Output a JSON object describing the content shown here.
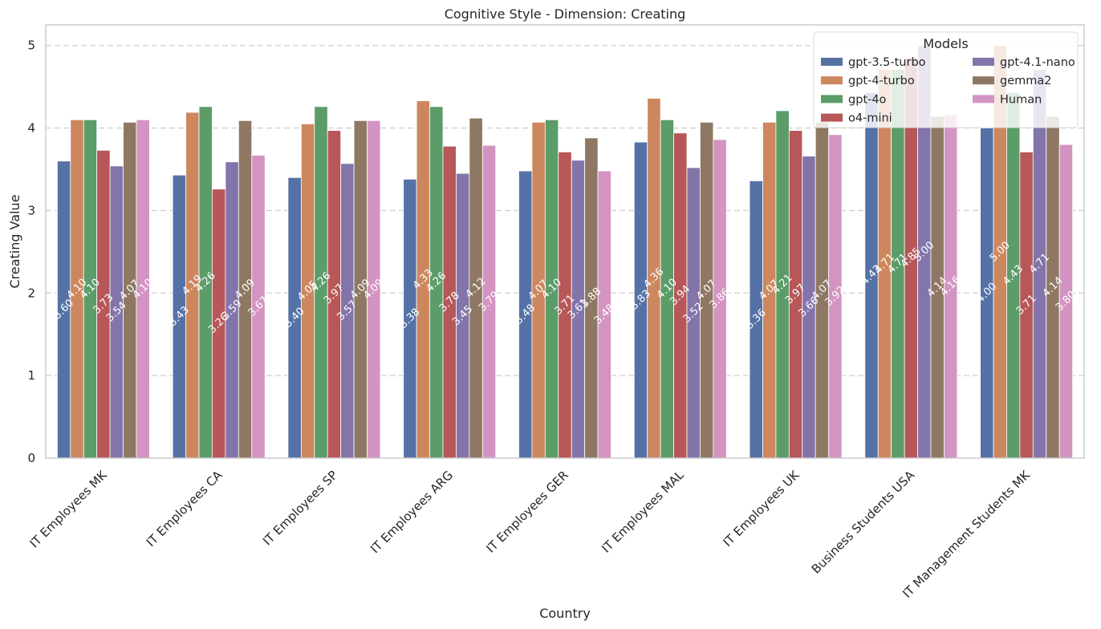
{
  "chart_data": {
    "type": "bar",
    "title": "Cognitive Style - Dimension: Creating",
    "xlabel": "Country",
    "ylabel": "Creating Value",
    "ylim": [
      0,
      5.25
    ],
    "yticks": [
      0,
      1,
      2,
      3,
      4,
      5
    ],
    "grid": "horizontal dashed",
    "legend": {
      "title": "Models",
      "placement": "top-right",
      "columns": 2
    },
    "categories": [
      "IT Employees MK",
      "IT Employees CA",
      "IT Employees SP",
      "IT Employees ARG",
      "IT Employees GER",
      "IT Employees MAL",
      "IT Employees UK",
      "Business Students USA",
      "IT Management Students MK"
    ],
    "series": [
      {
        "name": "gpt-3.5-turbo",
        "color": "#5572a6",
        "values": [
          3.6,
          3.43,
          3.4,
          3.38,
          3.48,
          3.83,
          3.36,
          4.43,
          4.0
        ]
      },
      {
        "name": "gpt-4-turbo",
        "color": "#cd875e",
        "values": [
          4.1,
          4.19,
          4.05,
          4.33,
          4.07,
          4.36,
          4.07,
          4.71,
          5.0
        ]
      },
      {
        "name": "gpt-4o",
        "color": "#5c9c69",
        "values": [
          4.1,
          4.26,
          4.26,
          4.26,
          4.1,
          4.1,
          4.21,
          4.71,
          4.43
        ]
      },
      {
        "name": "o4-mini",
        "color": "#b75758",
        "values": [
          3.73,
          3.26,
          3.97,
          3.78,
          3.71,
          3.94,
          3.97,
          4.85,
          3.71
        ]
      },
      {
        "name": "gpt-4.1-nano",
        "color": "#8375aa",
        "values": [
          3.54,
          3.59,
          3.57,
          3.45,
          3.61,
          3.52,
          3.66,
          5.0,
          4.71
        ]
      },
      {
        "name": "gemma2",
        "color": "#8e7863",
        "values": [
          4.07,
          4.09,
          4.09,
          4.12,
          3.88,
          4.07,
          4.07,
          4.14,
          4.14
        ]
      },
      {
        "name": "Human",
        "color": "#d394c2",
        "values": [
          4.1,
          3.67,
          4.09,
          3.79,
          3.48,
          3.86,
          3.92,
          4.16,
          3.8
        ]
      }
    ]
  }
}
